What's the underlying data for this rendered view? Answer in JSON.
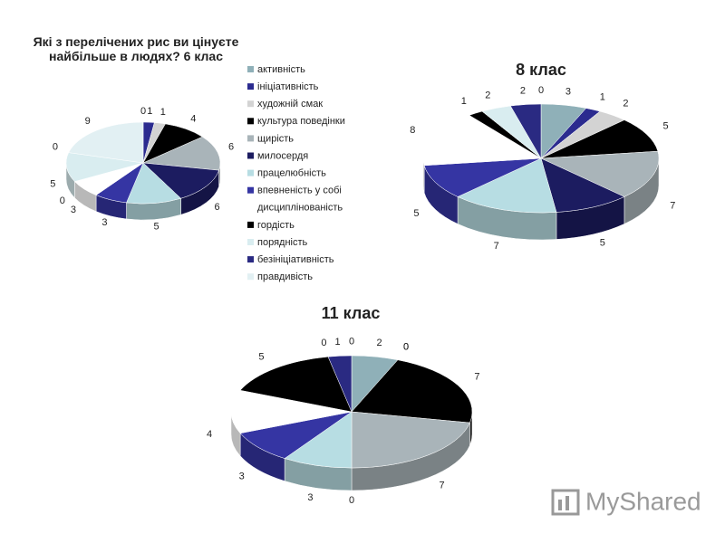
{
  "chart_data": [
    {
      "type": "pie3d",
      "title": "Які з перелічених рис ви цінуєте найбільше в людях? 6 клас",
      "legend": "right",
      "categories": [
        "активність",
        "ініціативність",
        "художній смак",
        "культура поведінки",
        "щирість",
        "милосердя",
        "працелюбність",
        "впевненість у собі",
        "дисциплінованість",
        "гордість",
        "порядність",
        "безініціативність",
        "правдивість"
      ],
      "colors": [
        "#8fb0b8",
        "#2b2b8f",
        "#d3d3d3",
        "#000000",
        "#a9b4b9",
        "#1c1c60",
        "#b7dde3",
        "#3535a3",
        "#ffffff",
        "#000000",
        "#d9edf0",
        "#2a2a82",
        "#e2f0f3"
      ],
      "values": [
        0,
        1,
        1,
        4,
        6,
        6,
        5,
        3,
        3,
        0,
        5,
        0,
        9
      ]
    },
    {
      "type": "pie3d",
      "title": "8 клас",
      "categories": [
        "активність",
        "ініціативність",
        "художній смак",
        "культура поведінки",
        "щирість",
        "милосердя",
        "працелюбність",
        "впевненість у собі",
        "дисциплінованість",
        "гордість",
        "порядність",
        "безініціативність",
        "правдивість"
      ],
      "colors": [
        "#8fb0b8",
        "#2b2b8f",
        "#d3d3d3",
        "#000000",
        "#a9b4b9",
        "#1c1c60",
        "#b7dde3",
        "#3535a3",
        "#ffffff",
        "#000000",
        "#d9edf0",
        "#2a2a82",
        "#e2f0f3"
      ],
      "values": [
        3,
        1,
        2,
        5,
        7,
        5,
        7,
        5,
        8,
        1,
        2,
        2,
        0
      ]
    },
    {
      "type": "pie3d",
      "title": "11 клас",
      "categories": [
        "активність",
        "ініціативність",
        "художній смак",
        "культура поведінки",
        "щирість",
        "милосердя",
        "працелюбність",
        "впевненість у собі",
        "дисциплінованість",
        "гордість",
        "порядність",
        "безініціативність",
        "правдивість"
      ],
      "colors": [
        "#8fb0b8",
        "#2b2b8f",
        "#d3d3d3",
        "#000000",
        "#a9b4b9",
        "#1c1c60",
        "#b7dde3",
        "#3535a3",
        "#ffffff",
        "#000000",
        "#d9edf0",
        "#2a2a82",
        "#e2f0f3"
      ],
      "values": [
        2,
        0,
        0,
        7,
        7,
        0,
        3,
        3,
        4,
        5,
        0,
        1,
        0
      ]
    }
  ],
  "watermark": "MyShared"
}
